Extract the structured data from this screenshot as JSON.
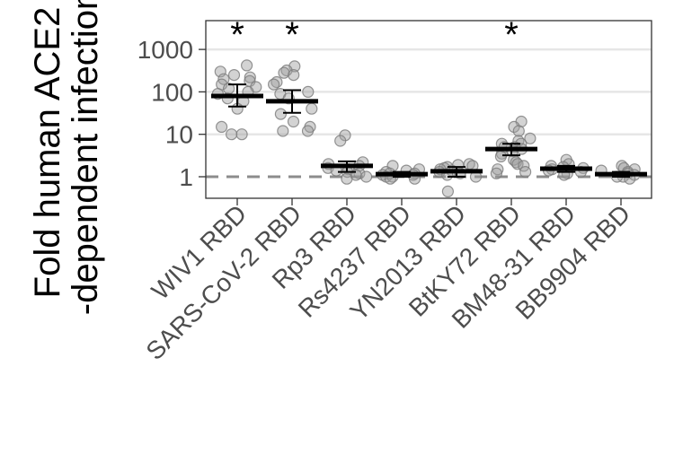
{
  "chart_data": {
    "type": "scatter",
    "ylabel_lines": [
      "Fold human ACE2",
      "-dependent infection"
    ],
    "yscale": "log",
    "ylim": [
      0.35,
      6000
    ],
    "yticks": [
      1,
      10,
      100,
      1000
    ],
    "ytick_labels": [
      "1",
      "10",
      "100",
      "1000"
    ],
    "categories": [
      "WIV1 RBD",
      "SARS-CoV-2 RBD",
      "Rp3 RBD",
      "Rs4237 RBD",
      "YN2013 RBD",
      "BtKY72 RBD",
      "BM48-31 RBD",
      "BB9904 RBD"
    ],
    "significance_marker": "*",
    "significant": [
      true,
      true,
      false,
      false,
      false,
      true,
      false,
      false
    ],
    "reference_line": 1,
    "groups": [
      {
        "mean": 80,
        "ci": [
          45,
          150
        ],
        "points": [
          420,
          300,
          250,
          220,
          200,
          180,
          150,
          130,
          120,
          100,
          90,
          70,
          60,
          40,
          15,
          10,
          10
        ]
      },
      {
        "mean": 60,
        "ci": [
          32,
          110
        ],
        "points": [
          400,
          320,
          280,
          250,
          170,
          150,
          100,
          90,
          70,
          40,
          30,
          20,
          15,
          12,
          12
        ]
      },
      {
        "mean": 1.8,
        "ci": [
          1.3,
          2.3
        ],
        "points": [
          9.5,
          7,
          2.2,
          2.0,
          1.8,
          1.6,
          1.5,
          1.4,
          1.3,
          1.2,
          1.1,
          1.0,
          0.9
        ]
      },
      {
        "mean": 1.15,
        "ci": [
          1.0,
          1.3
        ],
        "points": [
          1.8,
          1.5,
          1.4,
          1.3,
          1.2,
          1.2,
          1.1,
          1.1,
          1.0,
          1.0,
          0.9,
          0.9
        ]
      },
      {
        "mean": 1.35,
        "ci": [
          1.0,
          1.7
        ],
        "points": [
          2.0,
          1.9,
          1.8,
          1.7,
          1.6,
          1.5,
          1.4,
          1.3,
          1.2,
          1.1,
          1.0,
          0.45
        ]
      },
      {
        "mean": 4.5,
        "ci": [
          3.2,
          6.0
        ],
        "points": [
          20,
          15,
          12,
          8,
          7,
          6,
          6,
          5,
          5,
          4.5,
          4,
          3.5,
          3,
          2.5,
          2.2,
          2,
          1.8,
          1.5,
          1.3,
          1.2
        ]
      },
      {
        "mean": 1.55,
        "ci": [
          1.3,
          1.8
        ],
        "points": [
          2.5,
          2.0,
          1.8,
          1.7,
          1.6,
          1.5,
          1.4,
          1.3,
          1.2,
          1.1
        ]
      },
      {
        "mean": 1.15,
        "ci": [
          1.0,
          1.3
        ],
        "points": [
          1.8,
          1.6,
          1.5,
          1.4,
          1.3,
          1.2,
          1.1,
          1.0,
          1.0,
          0.9
        ]
      }
    ],
    "colors": {
      "point_fill": "#9e9e9e",
      "point_stroke": "#7a7a7a",
      "mean_bar": "#000000",
      "reference_line": "#8c8c8c",
      "gridline": "#e6e6e6",
      "axis_text": "#4d4d4d",
      "title_text": "#000000"
    }
  }
}
